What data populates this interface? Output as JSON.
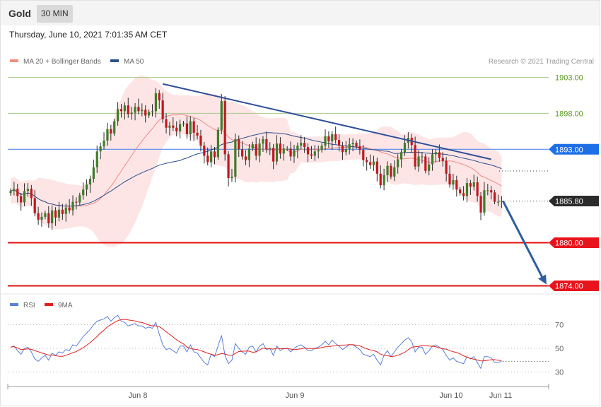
{
  "header": {
    "instrument": "Gold",
    "timeframe": "30 MIN",
    "timestamp": "Thursday, June 10, 2021 7:01:35 AM CET"
  },
  "legend": {
    "items": [
      {
        "label": "MA 20 + Bollinger Bands",
        "color": "#f28b82"
      },
      {
        "label": "MA 50",
        "color": "#2b4f8c"
      }
    ],
    "copyright": "Research © 2021 Trading Central"
  },
  "rsi_legend": {
    "items": [
      {
        "label": "RSI",
        "color": "#5b7fd6"
      },
      {
        "label": "9MA",
        "color": "#e02020"
      }
    ]
  },
  "colors": {
    "up_candle": "#3f7d2a",
    "down_candle": "#c0181f",
    "bollinger_fill": "#fde0e0",
    "ma20": "#f08a8a",
    "ma50": "#2b4f8c",
    "trendline": "#2f4f99",
    "resistance": "#a6c98a",
    "pivot": "#3b7ff0",
    "support": "#e01010",
    "forecast_arrow": "#2f5d9e"
  },
  "levels": [
    {
      "label": "1903.00",
      "value": 1903.0,
      "kind": "resistance"
    },
    {
      "label": "1898.00",
      "value": 1898.0,
      "kind": "resistance"
    },
    {
      "label": "1893.00",
      "value": 1893.0,
      "kind": "pivot"
    },
    {
      "label": "1885.80",
      "value": 1885.8,
      "kind": "last"
    },
    {
      "label": "1880.00",
      "value": 1880.0,
      "kind": "support"
    },
    {
      "label": "1874.00",
      "value": 1874.0,
      "kind": "support"
    }
  ],
  "rsi_axis": {
    "ticks": [
      "70",
      "50",
      "30"
    ]
  },
  "x_axis": {
    "ticks": [
      "Jun 8",
      "Jun 9",
      "Jun 10",
      "Jun 11"
    ]
  },
  "chart_data": {
    "type": "candlestick",
    "timeframe": "30 MIN",
    "y_range": [
      1874.0,
      1903.0
    ],
    "closes": [
      1887.2,
      1887.5,
      1886.5,
      1885.6,
      1887.2,
      1887.5,
      1886.2,
      1884.1,
      1883.2,
      1883.6,
      1884.1,
      1882.7,
      1884.5,
      1883.5,
      1884.6,
      1884.0,
      1884.9,
      1884.5,
      1885.7,
      1885.6,
      1886.6,
      1887.4,
      1888.1,
      1888.9,
      1890.5,
      1892.7,
      1893.4,
      1894.2,
      1895.8,
      1895.2,
      1896.9,
      1898.6,
      1898.3,
      1899.1,
      1897.9,
      1898.1,
      1898.9,
      1898.3,
      1898.5,
      1897.7,
      1898.2,
      1898.3,
      1900.8,
      1899.8,
      1897.2,
      1896.0,
      1896.3,
      1896.0,
      1895.5,
      1896.5,
      1896.6,
      1895.1,
      1896.9,
      1895.3,
      1894.9,
      1893.5,
      1892.1,
      1891.2,
      1892.7,
      1891.9,
      1895.7,
      1899.7,
      1892.3,
      1889.0,
      1889.2,
      1894.4,
      1893.0,
      1892.0,
      1891.5,
      1893.1,
      1893.7,
      1892.1,
      1893.8,
      1894.4,
      1893.0,
      1893.2,
      1891.3,
      1893.8,
      1892.4,
      1893.1,
      1893.1,
      1892.0,
      1892.9,
      1893.5,
      1893.9,
      1893.3,
      1892.3,
      1892.1,
      1892.7,
      1892.9,
      1893.5,
      1894.8,
      1894.1,
      1895.1,
      1894.3,
      1893.5,
      1892.6,
      1893.0,
      1893.7,
      1893.9,
      1893.4,
      1892.9,
      1891.5,
      1891.2,
      1890.8,
      1891.3,
      1889.6,
      1888.0,
      1889.4,
      1890.7,
      1889.2,
      1890.5,
      1891.6,
      1892.6,
      1893.9,
      1894.6,
      1893.6,
      1890.6,
      1892.0,
      1892.0,
      1890.0,
      1890.9,
      1892.3,
      1892.6,
      1891.8,
      1891.4,
      1889.6,
      1888.1,
      1888.7,
      1887.4,
      1886.9,
      1886.5,
      1888.3,
      1887.8,
      1888.4,
      1886.5,
      1884.2,
      1887.3,
      1887.3,
      1887.0,
      1885.7,
      1885.7,
      1885.8
    ],
    "rsi": [
      51,
      52,
      48,
      45,
      50,
      51,
      47,
      41,
      39,
      42,
      44,
      40,
      46,
      44,
      47,
      46,
      49,
      48,
      53,
      52,
      56,
      60,
      63,
      66,
      70,
      73,
      74,
      75,
      77,
      73,
      76,
      78,
      73,
      72,
      69,
      70,
      71,
      69,
      69,
      67,
      68,
      67,
      72,
      62,
      53,
      49,
      50,
      48,
      46,
      52,
      52,
      47,
      53,
      47,
      46,
      42,
      38,
      36,
      45,
      43,
      52,
      61,
      44,
      37,
      40,
      54,
      50,
      47,
      45,
      51,
      52,
      47,
      52,
      54,
      49,
      50,
      44,
      52,
      48,
      50,
      50,
      47,
      50,
      52,
      53,
      51,
      48,
      48,
      50,
      51,
      53,
      56,
      53,
      57,
      54,
      52,
      49,
      51,
      53,
      53,
      51,
      49,
      45,
      44,
      43,
      45,
      40,
      36,
      44,
      48,
      43,
      47,
      51,
      54,
      57,
      59,
      56,
      47,
      51,
      51,
      45,
      48,
      52,
      53,
      51,
      49,
      44,
      40,
      42,
      39,
      38,
      37,
      43,
      41,
      43,
      38,
      33,
      43,
      43,
      42,
      38,
      38,
      39
    ],
    "rsi_range": [
      20,
      80
    ],
    "indicators": [
      "MA 20 + Bollinger Bands",
      "MA 50",
      "RSI",
      "9MA"
    ],
    "x_ticks": [
      "Jun 8",
      "Jun 9",
      "Jun 10",
      "Jun 11"
    ],
    "forecast_target": 1874.0
  }
}
